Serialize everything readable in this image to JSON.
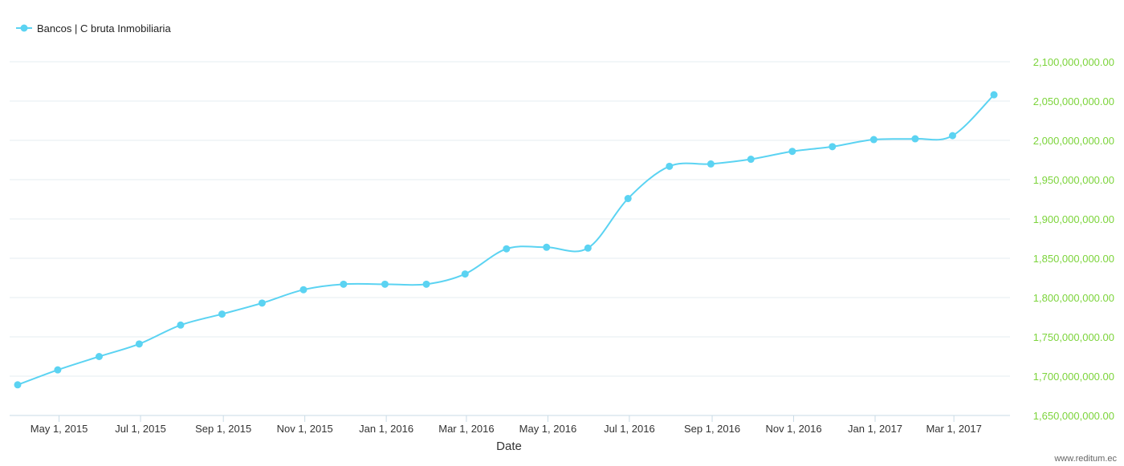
{
  "chart_data": {
    "type": "line",
    "legend": {
      "position": "top-left",
      "entries": [
        "Bancos | C bruta Inmobiliaria"
      ]
    },
    "series": [
      {
        "name": "Bancos | C bruta Inmobiliaria",
        "color": "#5bd3f2",
        "x": [
          "2015-03-31",
          "2015-04-30",
          "2015-05-31",
          "2015-06-30",
          "2015-07-31",
          "2015-08-31",
          "2015-09-30",
          "2015-10-31",
          "2015-11-30",
          "2015-12-31",
          "2016-01-31",
          "2016-02-29",
          "2016-03-31",
          "2016-04-30",
          "2016-05-31",
          "2016-06-30",
          "2016-07-31",
          "2016-08-31",
          "2016-09-30",
          "2016-10-31",
          "2016-11-30",
          "2016-12-31",
          "2017-01-31",
          "2017-02-28",
          "2017-03-31"
        ],
        "values": [
          1689000000,
          1708000000,
          1725000000,
          1741000000,
          1765000000,
          1779000000,
          1793000000,
          1810000000,
          1817000000,
          1817000000,
          1817000000,
          1830000000,
          1862000000,
          1864000000,
          1863000000,
          1926000000,
          1967000000,
          1970000000,
          1976000000,
          1986000000,
          1992000000,
          2001000000,
          2002000000,
          2006000000,
          2058000000
        ]
      }
    ],
    "xlabel": "Date",
    "x_ticks": [
      {
        "date": "2015-05-01",
        "label": "May 1, 2015"
      },
      {
        "date": "2015-07-01",
        "label": "Jul 1, 2015"
      },
      {
        "date": "2015-09-01",
        "label": "Sep 1, 2015"
      },
      {
        "date": "2015-11-01",
        "label": "Nov 1, 2015"
      },
      {
        "date": "2016-01-01",
        "label": "Jan 1, 2016"
      },
      {
        "date": "2016-03-01",
        "label": "Mar 1, 2016"
      },
      {
        "date": "2016-05-01",
        "label": "May 1, 2016"
      },
      {
        "date": "2016-07-01",
        "label": "Jul 1, 2016"
      },
      {
        "date": "2016-09-01",
        "label": "Sep 1, 2016"
      },
      {
        "date": "2016-11-01",
        "label": "Nov 1, 2016"
      },
      {
        "date": "2017-01-01",
        "label": "Jan 1, 2017"
      },
      {
        "date": "2017-03-01",
        "label": "Mar 1, 2017"
      }
    ],
    "xlim": [
      "2015-03-31",
      "2017-04-12"
    ],
    "ylim": [
      1650000000,
      2100000000
    ],
    "y_axis_position": "right",
    "y_ticks": [
      {
        "value": 1650000000,
        "label": "1,650,000,000.00"
      },
      {
        "value": 1700000000,
        "label": "1,700,000,000.00"
      },
      {
        "value": 1750000000,
        "label": "1,750,000,000.00"
      },
      {
        "value": 1800000000,
        "label": "1,800,000,000.00"
      },
      {
        "value": 1850000000,
        "label": "1,850,000,000.00"
      },
      {
        "value": 1900000000,
        "label": "1,900,000,000.00"
      },
      {
        "value": 1950000000,
        "label": "1,950,000,000.00"
      },
      {
        "value": 2000000000,
        "label": "2,000,000,000.00"
      },
      {
        "value": 2050000000,
        "label": "2,050,000,000.00"
      },
      {
        "value": 2100000000,
        "label": "2,100,000,000.00"
      }
    ],
    "grid": true,
    "y_tick_color": "#7cd43b"
  },
  "credit": "www.reditum.ec"
}
